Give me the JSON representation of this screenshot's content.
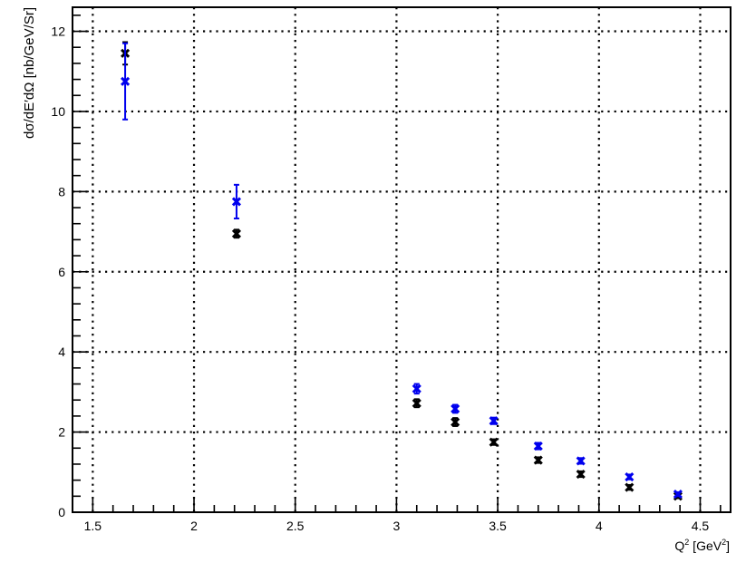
{
  "chart_data": {
    "type": "scatter",
    "title": "",
    "xlabel": {
      "base": "Q",
      "sup": "2",
      "unit_open": " [GeV",
      "unit_sup": "2",
      "unit_close": "]"
    },
    "ylabel": "dσ/dE′dΩ [nb/GeV/Sr]",
    "xlim": [
      1.4,
      4.65
    ],
    "ylim": [
      0,
      12.6
    ],
    "x_ticks": [
      1.5,
      2,
      2.5,
      3,
      3.5,
      4,
      4.5
    ],
    "x_tick_labels": [
      "1.5",
      "2",
      "2.5",
      "3",
      "3.5",
      "4",
      "4.5"
    ],
    "y_ticks": [
      0,
      2,
      4,
      6,
      8,
      10,
      12
    ],
    "y_tick_labels": [
      "0",
      "2",
      "4",
      "6",
      "8",
      "10",
      "12"
    ],
    "grid": true,
    "grid_style": "dotted",
    "series": [
      {
        "color": "#000000",
        "marker": "x",
        "x": [
          1.66,
          2.21,
          3.1,
          3.29,
          3.48,
          3.7,
          3.91,
          4.15,
          4.39
        ],
        "y": [
          11.45,
          6.95,
          2.72,
          2.25,
          1.75,
          1.3,
          0.95,
          0.62,
          0.4
        ],
        "err": [
          0.28,
          0.1,
          0.1,
          0.1,
          0.07,
          0.07,
          0.07,
          0.06,
          0.05
        ]
      },
      {
        "color": "#0000ee",
        "marker": "x",
        "x": [
          1.66,
          2.21,
          3.1,
          3.29,
          3.48,
          3.7,
          3.91,
          4.15,
          4.39
        ],
        "y": [
          10.75,
          7.75,
          3.08,
          2.58,
          2.28,
          1.65,
          1.28,
          0.88,
          0.45
        ],
        "err": [
          0.95,
          0.42,
          0.12,
          0.1,
          0.08,
          0.08,
          0.07,
          0.06,
          0.05
        ]
      }
    ]
  }
}
